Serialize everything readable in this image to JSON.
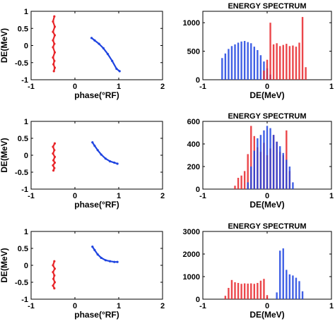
{
  "chart_data": [
    {
      "type": "scatter",
      "row": 1,
      "xlabel": "phase(°RF)",
      "ylabel": "DE(MeV)",
      "xlim": [
        -1,
        2
      ],
      "ylim": [
        -1,
        1
      ],
      "xticks": [
        "-1",
        "0",
        "1",
        "2"
      ],
      "yticks": [
        "-1",
        "-0.5",
        "0",
        "0.5",
        "1"
      ],
      "series": [
        {
          "color": "#e8262a",
          "points": [
            [
              -0.47,
              0.85
            ],
            [
              -0.5,
              0.7
            ],
            [
              -0.46,
              0.55
            ],
            [
              -0.5,
              0.4
            ],
            [
              -0.46,
              0.3
            ],
            [
              -0.5,
              0.15
            ],
            [
              -0.47,
              0.05
            ],
            [
              -0.5,
              -0.05
            ],
            [
              -0.46,
              -0.2
            ],
            [
              -0.5,
              -0.35
            ],
            [
              -0.47,
              -0.45
            ],
            [
              -0.49,
              -0.55
            ],
            [
              -0.46,
              -0.65
            ],
            [
              -0.48,
              -0.75
            ]
          ]
        },
        {
          "color": "#1f44e0",
          "points": [
            [
              0.38,
              0.22
            ],
            [
              0.45,
              0.15
            ],
            [
              0.55,
              0.05
            ],
            [
              0.65,
              -0.08
            ],
            [
              0.75,
              -0.25
            ],
            [
              0.85,
              -0.45
            ],
            [
              0.95,
              -0.68
            ],
            [
              1.02,
              -0.75
            ]
          ]
        }
      ]
    },
    {
      "type": "bar",
      "row": 1,
      "title": "ENERGY SPECTRUM",
      "xlabel": "DE(MeV)",
      "xlim": [
        -1,
        1
      ],
      "ylim": [
        0,
        1200
      ],
      "xticks": [
        "-1",
        "0",
        "1"
      ],
      "yticks": [
        "0",
        "500",
        "1000"
      ],
      "series": [
        {
          "color": "#1f44e0",
          "x": [
            -0.7,
            -0.65,
            -0.6,
            -0.55,
            -0.5,
            -0.45,
            -0.4,
            -0.35,
            -0.3,
            -0.25,
            -0.2,
            -0.15,
            -0.1,
            -0.05,
            0,
            0.05
          ],
          "values": [
            380,
            460,
            540,
            590,
            620,
            650,
            670,
            680,
            660,
            640,
            580,
            520,
            430,
            320,
            200,
            90
          ]
        },
        {
          "color": "#e8262a",
          "x": [
            -0.05,
            0,
            0.05,
            0.1,
            0.15,
            0.2,
            0.25,
            0.3,
            0.35,
            0.4,
            0.45,
            0.5,
            0.55,
            0.6
          ],
          "values": [
            160,
            350,
            1000,
            620,
            640,
            590,
            610,
            630,
            590,
            600,
            580,
            650,
            1100,
            220
          ]
        }
      ]
    },
    {
      "type": "scatter",
      "row": 2,
      "xlabel": "phase(°RF)",
      "ylabel": "DE(MeV)",
      "xlim": [
        -1,
        2
      ],
      "ylim": [
        -1,
        1
      ],
      "xticks": [
        "-1",
        "0",
        "1",
        "2"
      ],
      "yticks": [
        "-1",
        "-0.5",
        "0",
        "0.5",
        "1"
      ],
      "series": [
        {
          "color": "#e8262a",
          "points": [
            [
              -0.46,
              0.35
            ],
            [
              -0.5,
              0.25
            ],
            [
              -0.47,
              0.15
            ],
            [
              -0.5,
              0.05
            ],
            [
              -0.46,
              -0.05
            ],
            [
              -0.49,
              -0.15
            ],
            [
              -0.46,
              -0.22
            ],
            [
              -0.5,
              -0.3
            ],
            [
              -0.47,
              -0.38
            ],
            [
              -0.49,
              -0.45
            ]
          ]
        },
        {
          "color": "#1f44e0",
          "points": [
            [
              0.4,
              0.38
            ],
            [
              0.45,
              0.28
            ],
            [
              0.52,
              0.15
            ],
            [
              0.6,
              0.02
            ],
            [
              0.7,
              -0.1
            ],
            [
              0.8,
              -0.18
            ],
            [
              0.9,
              -0.22
            ],
            [
              0.97,
              -0.25
            ]
          ]
        }
      ]
    },
    {
      "type": "bar",
      "row": 2,
      "title": "ENERGY SPECTRUM",
      "xlabel": "DE(MeV)",
      "xlim": [
        -1,
        1
      ],
      "ylim": [
        0,
        600
      ],
      "xticks": [
        "-1",
        "0",
        "1"
      ],
      "yticks": [
        "0",
        "200",
        "400",
        "600"
      ],
      "series": [
        {
          "color": "#e8262a",
          "x": [
            -0.5,
            -0.45,
            -0.4,
            -0.35,
            -0.3,
            -0.25,
            -0.2,
            -0.15,
            -0.1,
            -0.05,
            0,
            0.05,
            0.1,
            0.15,
            0.2,
            0.25,
            0.3,
            0.35
          ],
          "values": [
            30,
            100,
            120,
            160,
            310,
            560,
            470,
            370,
            330,
            410,
            300,
            360,
            480,
            420,
            330,
            300,
            520,
            160
          ]
        },
        {
          "color": "#1f44e0",
          "x": [
            -0.3,
            -0.25,
            -0.2,
            -0.15,
            -0.1,
            -0.05,
            0,
            0.05,
            0.1,
            0.15,
            0.2,
            0.25,
            0.3,
            0.35,
            0.4
          ],
          "values": [
            60,
            200,
            340,
            450,
            480,
            520,
            560,
            540,
            480,
            420,
            380,
            320,
            260,
            200,
            60
          ]
        }
      ]
    },
    {
      "type": "scatter",
      "row": 3,
      "xlabel": "phase(°RF)",
      "ylabel": "DE(MeV)",
      "xlim": [
        -1,
        2
      ],
      "ylim": [
        -1,
        1
      ],
      "xticks": [
        "-1",
        "0",
        "1",
        "2"
      ],
      "yticks": [
        "-1",
        "-0.5",
        "0",
        "0.5",
        "1"
      ],
      "series": [
        {
          "color": "#e8262a",
          "points": [
            [
              -0.47,
              0.12
            ],
            [
              -0.5,
              0.0
            ],
            [
              -0.46,
              -0.1
            ],
            [
              -0.5,
              -0.2
            ],
            [
              -0.47,
              -0.3
            ],
            [
              -0.49,
              -0.4
            ],
            [
              -0.46,
              -0.5
            ],
            [
              -0.5,
              -0.6
            ],
            [
              -0.47,
              -0.68
            ]
          ]
        },
        {
          "color": "#1f44e0",
          "points": [
            [
              0.4,
              0.55
            ],
            [
              0.45,
              0.45
            ],
            [
              0.52,
              0.32
            ],
            [
              0.6,
              0.22
            ],
            [
              0.7,
              0.15
            ],
            [
              0.8,
              0.12
            ],
            [
              0.9,
              0.1
            ],
            [
              0.97,
              0.1
            ]
          ]
        }
      ]
    },
    {
      "type": "bar",
      "row": 3,
      "title": "ENERGY SPECTRUM",
      "xlabel": "DE(MeV)",
      "xlim": [
        -1,
        1
      ],
      "ylim": [
        0,
        3000
      ],
      "xticks": [
        "-1",
        "0",
        "1"
      ],
      "yticks": [
        "0",
        "1000",
        "2000",
        "3000"
      ],
      "series": [
        {
          "color": "#e8262a",
          "x": [
            -0.65,
            -0.6,
            -0.55,
            -0.5,
            -0.45,
            -0.4,
            -0.35,
            -0.3,
            -0.25,
            -0.2,
            -0.15,
            -0.1,
            -0.05,
            0
          ],
          "values": [
            150,
            500,
            850,
            750,
            720,
            680,
            700,
            690,
            700,
            680,
            720,
            820,
            900,
            180
          ]
        },
        {
          "color": "#1f44e0",
          "x": [
            0.15,
            0.2,
            0.25,
            0.3,
            0.35,
            0.4,
            0.45,
            0.5,
            0.55
          ],
          "values": [
            300,
            2150,
            2250,
            1300,
            1100,
            1050,
            950,
            800,
            350
          ]
        }
      ]
    }
  ]
}
